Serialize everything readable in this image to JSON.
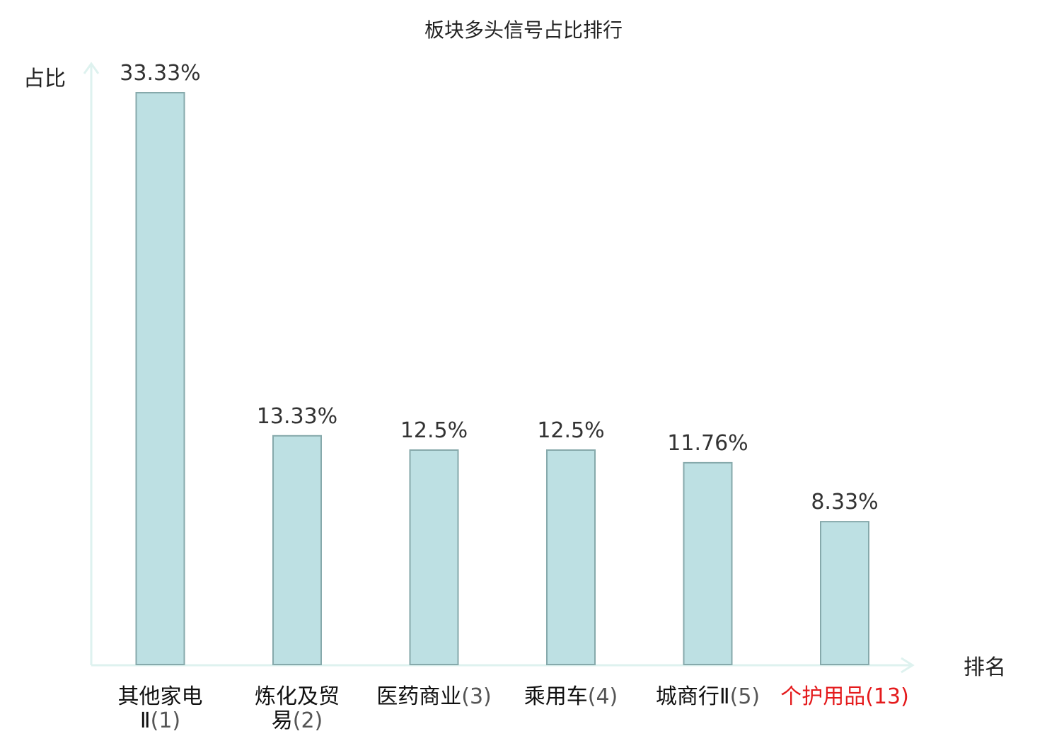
{
  "chart_data": {
    "type": "bar",
    "title": "板块多头信号占比排行",
    "xlabel": "排名",
    "ylabel": "占比",
    "ylim": [
      0,
      35
    ],
    "grid": false,
    "categories": [
      {
        "name": "其他家电Ⅱ",
        "rank": "(1)",
        "lines": [
          {
            "name": "其他家电",
            "rank": ""
          },
          {
            "name": "Ⅱ",
            "rank": "(1)"
          }
        ],
        "highlight": false
      },
      {
        "name": "炼化及贸易",
        "rank": "(2)",
        "lines": [
          {
            "name": "炼化及贸",
            "rank": ""
          },
          {
            "name": "易",
            "rank": "(2)"
          }
        ],
        "highlight": false
      },
      {
        "name": "医药商业",
        "rank": "(3)",
        "lines": [
          {
            "name": "医药商业",
            "rank": "(3)"
          }
        ],
        "highlight": false
      },
      {
        "name": "乘用车",
        "rank": "(4)",
        "lines": [
          {
            "name": "乘用车",
            "rank": "(4)"
          }
        ],
        "highlight": false
      },
      {
        "name": "城商行Ⅱ",
        "rank": "(5)",
        "lines": [
          {
            "name": "城商行Ⅱ",
            "rank": "(5)"
          }
        ],
        "highlight": false
      },
      {
        "name": "个护用品",
        "rank": "(13)",
        "lines": [
          {
            "name": "个护用品",
            "rank": "(13)"
          }
        ],
        "highlight": true
      }
    ],
    "values": [
      33.33,
      13.33,
      12.5,
      12.5,
      11.76,
      8.33
    ],
    "value_labels": [
      "33.33%",
      "13.33%",
      "12.5%",
      "12.5%",
      "11.76%",
      "8.33%"
    ],
    "colors": {
      "bar_fill": "#bde0e3",
      "bar_stroke": "#86a9ab",
      "axis": "#def2ef",
      "highlight": "#e41a1c"
    }
  }
}
